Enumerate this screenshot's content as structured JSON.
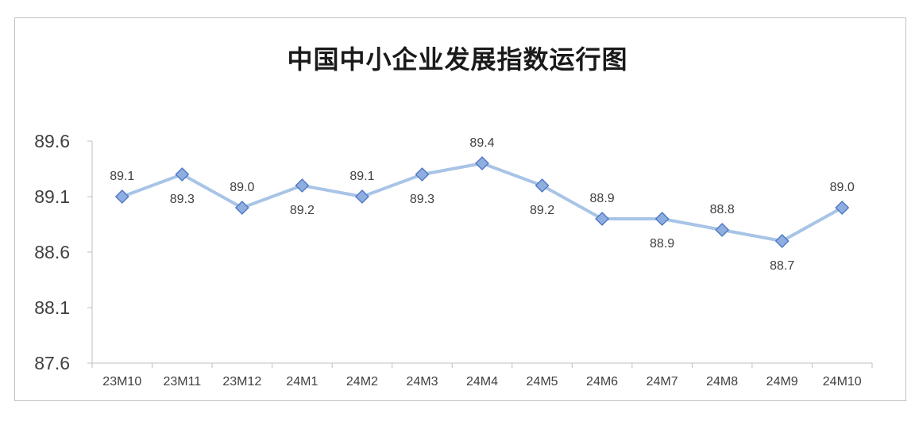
{
  "chart_data": {
    "type": "line",
    "title": "中国中小企业发展指数运行图",
    "categories": [
      "23M10",
      "23M11",
      "23M12",
      "24M1",
      "24M2",
      "24M3",
      "24M4",
      "24M5",
      "24M6",
      "24M7",
      "24M8",
      "24M9",
      "24M10"
    ],
    "series": [
      {
        "values": [
          89.1,
          89.3,
          89.0,
          89.2,
          89.1,
          89.3,
          89.4,
          89.2,
          88.9,
          88.9,
          88.8,
          88.7,
          89.0
        ],
        "labels": [
          "89.1",
          "89.3",
          "89.0",
          "89.2",
          "89.1",
          "89.3",
          "89.4",
          "89.2",
          "88.9",
          "88.9",
          "88.8",
          "88.7",
          "89.0"
        ],
        "label_positions": [
          "above",
          "below",
          "above",
          "below",
          "above",
          "below",
          "above",
          "below",
          "above",
          "below",
          "above",
          "below",
          "above"
        ]
      }
    ],
    "yticks": [
      "87.6",
      "88.1",
      "88.6",
      "89.1",
      "89.6"
    ],
    "ylim": [
      87.6,
      89.6
    ],
    "xlabel": "",
    "ylabel": "",
    "grid": false,
    "legend": "none",
    "colors": {
      "line": "#a8c4e6",
      "marker_fill": "#8eaee0",
      "marker_edge": "#4a74c2",
      "axis": "#bfbfbf"
    }
  }
}
